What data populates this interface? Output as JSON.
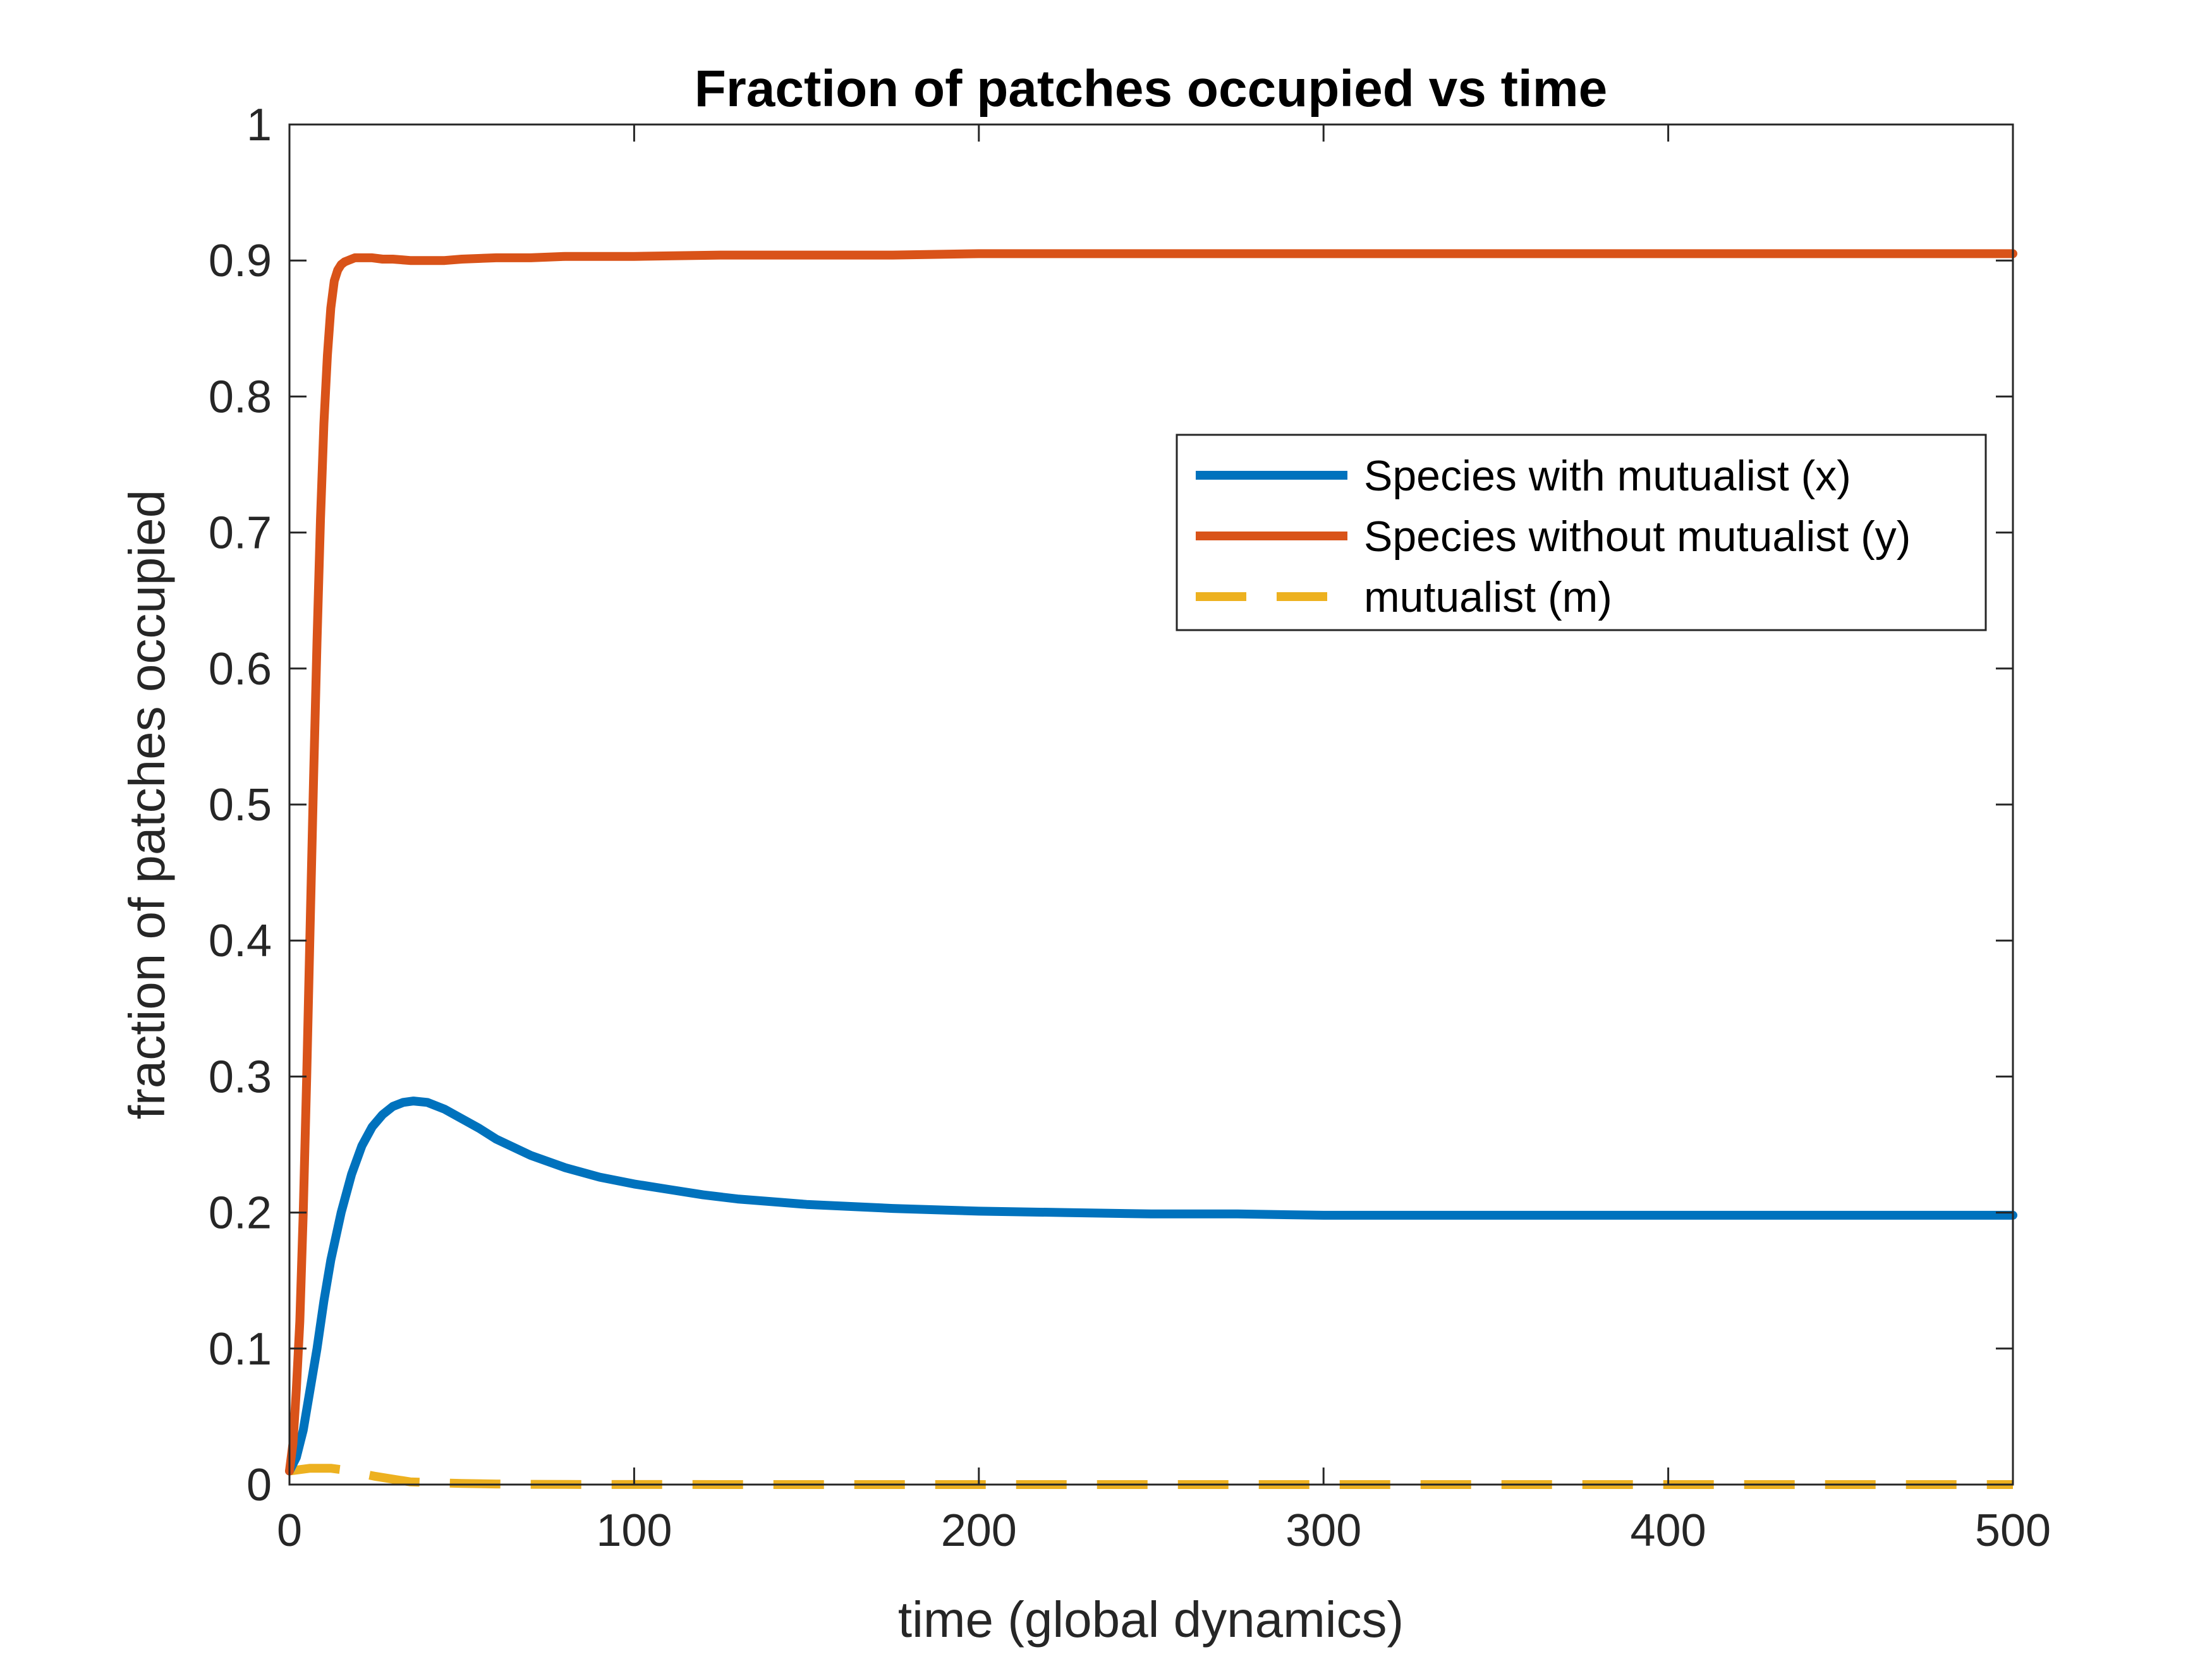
{
  "chart_data": {
    "type": "line",
    "title": "Fraction of patches occupied vs time",
    "xlabel": "time (global dynamics)",
    "ylabel": "fraction of patches occupied",
    "xlim": [
      0,
      500
    ],
    "ylim": [
      0,
      1
    ],
    "xticks": [
      0,
      100,
      200,
      300,
      400,
      500
    ],
    "xtick_labels": [
      "0",
      "100",
      "200",
      "300",
      "400",
      "500"
    ],
    "yticks": [
      0,
      0.1,
      0.2,
      0.3,
      0.4,
      0.5,
      0.6,
      0.7,
      0.8,
      0.9,
      1
    ],
    "ytick_labels": [
      "0",
      "0.1",
      "0.2",
      "0.3",
      "0.4",
      "0.5",
      "0.6",
      "0.7",
      "0.8",
      "0.9",
      "1"
    ],
    "grid": false,
    "legend_position": "upper-right",
    "series": [
      {
        "name": "Species with mutualist (x)",
        "color": "#0072bd",
        "dash": "solid",
        "x": [
          0,
          2,
          4,
          6,
          8,
          10,
          12,
          15,
          18,
          21,
          24,
          27,
          30,
          33,
          36,
          40,
          45,
          50,
          55,
          60,
          70,
          80,
          90,
          100,
          110,
          120,
          130,
          140,
          150,
          175,
          200,
          225,
          250,
          275,
          300,
          350,
          400,
          450,
          500
        ],
        "y": [
          0.01,
          0.02,
          0.04,
          0.07,
          0.1,
          0.135,
          0.165,
          0.2,
          0.228,
          0.249,
          0.263,
          0.272,
          0.278,
          0.281,
          0.282,
          0.281,
          0.276,
          0.269,
          0.262,
          0.254,
          0.242,
          0.233,
          0.226,
          0.221,
          0.217,
          0.213,
          0.21,
          0.208,
          0.206,
          0.203,
          0.201,
          0.2,
          0.199,
          0.199,
          0.198,
          0.198,
          0.198,
          0.198,
          0.198
        ]
      },
      {
        "name": "Species without mutualist (y)",
        "color": "#d95319",
        "dash": "solid",
        "x": [
          0,
          1,
          2,
          3,
          4,
          5,
          6,
          7,
          8,
          9,
          10,
          11,
          12,
          13,
          14,
          15,
          16,
          17,
          18,
          19,
          20,
          22,
          24,
          27,
          30,
          35,
          40,
          45,
          50,
          60,
          70,
          80,
          100,
          125,
          150,
          175,
          200,
          250,
          300,
          350,
          400,
          450,
          500
        ],
        "y": [
          0.01,
          0.03,
          0.07,
          0.12,
          0.2,
          0.3,
          0.41,
          0.52,
          0.62,
          0.71,
          0.78,
          0.83,
          0.865,
          0.885,
          0.893,
          0.897,
          0.899,
          0.9,
          0.901,
          0.902,
          0.902,
          0.902,
          0.902,
          0.901,
          0.901,
          0.9,
          0.9,
          0.9,
          0.901,
          0.902,
          0.902,
          0.903,
          0.903,
          0.904,
          0.904,
          0.904,
          0.905,
          0.905,
          0.905,
          0.905,
          0.905,
          0.905,
          0.905
        ]
      },
      {
        "name": "mutualist (m)",
        "color": "#edb120",
        "dash": "dashed",
        "x": [
          0,
          3,
          6,
          9,
          12,
          15,
          18,
          21,
          25,
          30,
          35,
          40,
          50,
          60,
          70,
          80,
          100,
          150,
          200,
          300,
          400,
          500
        ],
        "y": [
          0.01,
          0.011,
          0.012,
          0.012,
          0.012,
          0.011,
          0.01,
          0.008,
          0.006,
          0.004,
          0.002,
          0.0015,
          0.0008,
          0.0004,
          0.0002,
          0.0001,
          5e-05,
          0,
          0,
          0,
          0,
          0
        ]
      }
    ]
  }
}
